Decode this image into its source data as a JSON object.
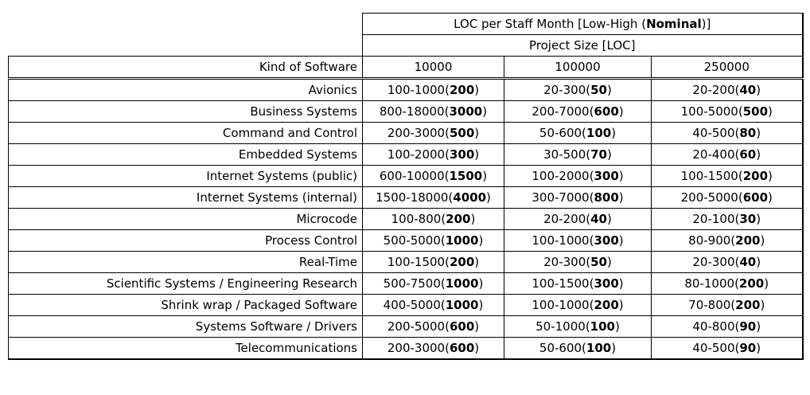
{
  "colors": {
    "background": "#ffffff",
    "border": "#000000",
    "text": "#000000"
  },
  "table": {
    "title": {
      "prefix": "LOC per Staff Month [Low-High (",
      "bold": "Nominal",
      "suffix": ")]"
    },
    "subtitle": "Project Size [LOC]",
    "corner_header": "Kind of Software",
    "size_columns": [
      "10000",
      "100000",
      "250000"
    ],
    "rows": [
      {
        "label": "Avionics",
        "cells": [
          {
            "range": "100-1000",
            "nominal": "200"
          },
          {
            "range": "20-300",
            "nominal": "50"
          },
          {
            "range": "20-200",
            "nominal": "40"
          }
        ]
      },
      {
        "label": "Business Systems",
        "cells": [
          {
            "range": "800-18000",
            "nominal": "3000"
          },
          {
            "range": "200-7000",
            "nominal": "600"
          },
          {
            "range": "100-5000",
            "nominal": "500"
          }
        ]
      },
      {
        "label": "Command and Control",
        "cells": [
          {
            "range": "200-3000",
            "nominal": "500"
          },
          {
            "range": "50-600",
            "nominal": "100"
          },
          {
            "range": "40-500",
            "nominal": "80"
          }
        ]
      },
      {
        "label": "Embedded Systems",
        "cells": [
          {
            "range": "100-2000",
            "nominal": "300"
          },
          {
            "range": "30-500",
            "nominal": "70"
          },
          {
            "range": "20-400",
            "nominal": "60"
          }
        ]
      },
      {
        "label": "Internet Systems (public)",
        "cells": [
          {
            "range": "600-10000",
            "nominal": "1500"
          },
          {
            "range": "100-2000",
            "nominal": "300"
          },
          {
            "range": "100-1500",
            "nominal": "200"
          }
        ]
      },
      {
        "label": "Internet Systems (internal)",
        "cells": [
          {
            "range": "1500-18000",
            "nominal": "4000"
          },
          {
            "range": "300-7000",
            "nominal": "800"
          },
          {
            "range": "200-5000",
            "nominal": "600"
          }
        ]
      },
      {
        "label": "Microcode",
        "cells": [
          {
            "range": "100-800",
            "nominal": "200"
          },
          {
            "range": "20-200",
            "nominal": "40"
          },
          {
            "range": "20-100",
            "nominal": "30"
          }
        ]
      },
      {
        "label": "Process Control",
        "cells": [
          {
            "range": "500-5000",
            "nominal": "1000"
          },
          {
            "range": "100-1000",
            "nominal": "300"
          },
          {
            "range": "80-900",
            "nominal": "200"
          }
        ]
      },
      {
        "label": "Real-Time",
        "cells": [
          {
            "range": "100-1500",
            "nominal": "200"
          },
          {
            "range": "20-300",
            "nominal": "50"
          },
          {
            "range": "20-300",
            "nominal": "40"
          }
        ]
      },
      {
        "label": "Scientific Systems / Engineering Research",
        "cells": [
          {
            "range": "500-7500",
            "nominal": "1000"
          },
          {
            "range": "100-1500",
            "nominal": "300"
          },
          {
            "range": "80-1000",
            "nominal": "200"
          }
        ]
      },
      {
        "label": "Shrink wrap / Packaged Software",
        "cells": [
          {
            "range": "400-5000",
            "nominal": "1000"
          },
          {
            "range": "100-1000",
            "nominal": "200"
          },
          {
            "range": "70-800",
            "nominal": "200"
          }
        ]
      },
      {
        "label": "Systems Software / Drivers",
        "cells": [
          {
            "range": "200-5000",
            "nominal": "600"
          },
          {
            "range": "50-1000",
            "nominal": "100"
          },
          {
            "range": "40-800",
            "nominal": "90"
          }
        ]
      },
      {
        "label": "Telecommunications",
        "cells": [
          {
            "range": "200-3000",
            "nominal": "600"
          },
          {
            "range": "50-600",
            "nominal": "100"
          },
          {
            "range": "40-500",
            "nominal": "90"
          }
        ]
      }
    ]
  }
}
